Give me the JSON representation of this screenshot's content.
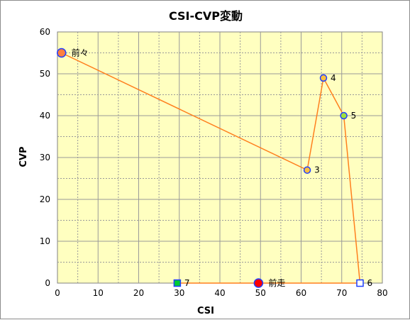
{
  "chart_data": {
    "type": "scatter",
    "title": "CSI-CVP変動",
    "xlabel": "CSI",
    "ylabel": "CVP",
    "xlim": [
      0,
      80
    ],
    "ylim": [
      0,
      60
    ],
    "xticks": [
      "0",
      "10",
      "20",
      "30",
      "40",
      "50",
      "60",
      "70",
      "80"
    ],
    "yticks": [
      "0",
      "10",
      "20",
      "30",
      "40",
      "50",
      "60"
    ],
    "grid": true,
    "plot_background": "#ffffc0",
    "line_color": "#ff7f1e",
    "points": [
      {
        "label": "前々",
        "x": 1,
        "y": 55,
        "marker": "circle-large",
        "fill": "#ff7f3f",
        "stroke": "#1f3fff"
      },
      {
        "label": "3",
        "x": 61.5,
        "y": 27,
        "marker": "circle",
        "fill": "#ffbf3f",
        "stroke": "#1f3fff"
      },
      {
        "label": "4",
        "x": 65.5,
        "y": 49,
        "marker": "circle",
        "fill": "#ffbf3f",
        "stroke": "#1f3fff"
      },
      {
        "label": "5",
        "x": 70.5,
        "y": 40,
        "marker": "circle",
        "fill": "#9fdf3f",
        "stroke": "#1f3fff"
      },
      {
        "label": "6",
        "x": 74.5,
        "y": 0,
        "marker": "square",
        "fill": "#ffffff",
        "stroke": "#1f3fff"
      },
      {
        "label": "7",
        "x": 29.5,
        "y": 0,
        "marker": "square",
        "fill": "#00cc33",
        "stroke": "#1f3fff"
      },
      {
        "label": "前走",
        "x": 49.5,
        "y": 0,
        "marker": "circle-large",
        "fill": "#ff0000",
        "stroke": "#1f3fff"
      }
    ]
  }
}
